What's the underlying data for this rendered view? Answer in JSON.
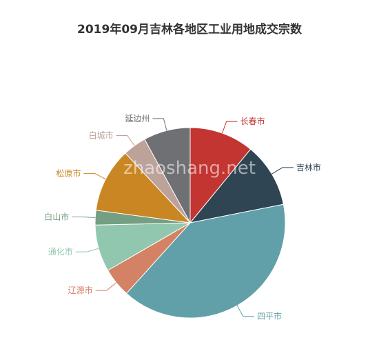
{
  "chart_data": {
    "type": "pie",
    "title": "2019年09月吉林各地区工业用地成交宗数",
    "slices": [
      {
        "label": "长春市",
        "value": 11,
        "color": "#c23531"
      },
      {
        "label": "吉林市",
        "value": 11,
        "color": "#2f4554"
      },
      {
        "label": "四平市",
        "value": 40,
        "color": "#61a0a8"
      },
      {
        "label": "辽源市",
        "value": 5,
        "color": "#d48265"
      },
      {
        "label": "通化市",
        "value": 8,
        "color": "#91c7ae"
      },
      {
        "label": "白山市",
        "value": 2.5,
        "color": "#749f83"
      },
      {
        "label": "松原市",
        "value": 11,
        "color": "#ca8622"
      },
      {
        "label": "白城市",
        "value": 4,
        "color": "#bda29a"
      },
      {
        "label": "延边州",
        "value": 8,
        "color": "#6e7074"
      }
    ]
  },
  "watermark": "zhaoshang.net"
}
